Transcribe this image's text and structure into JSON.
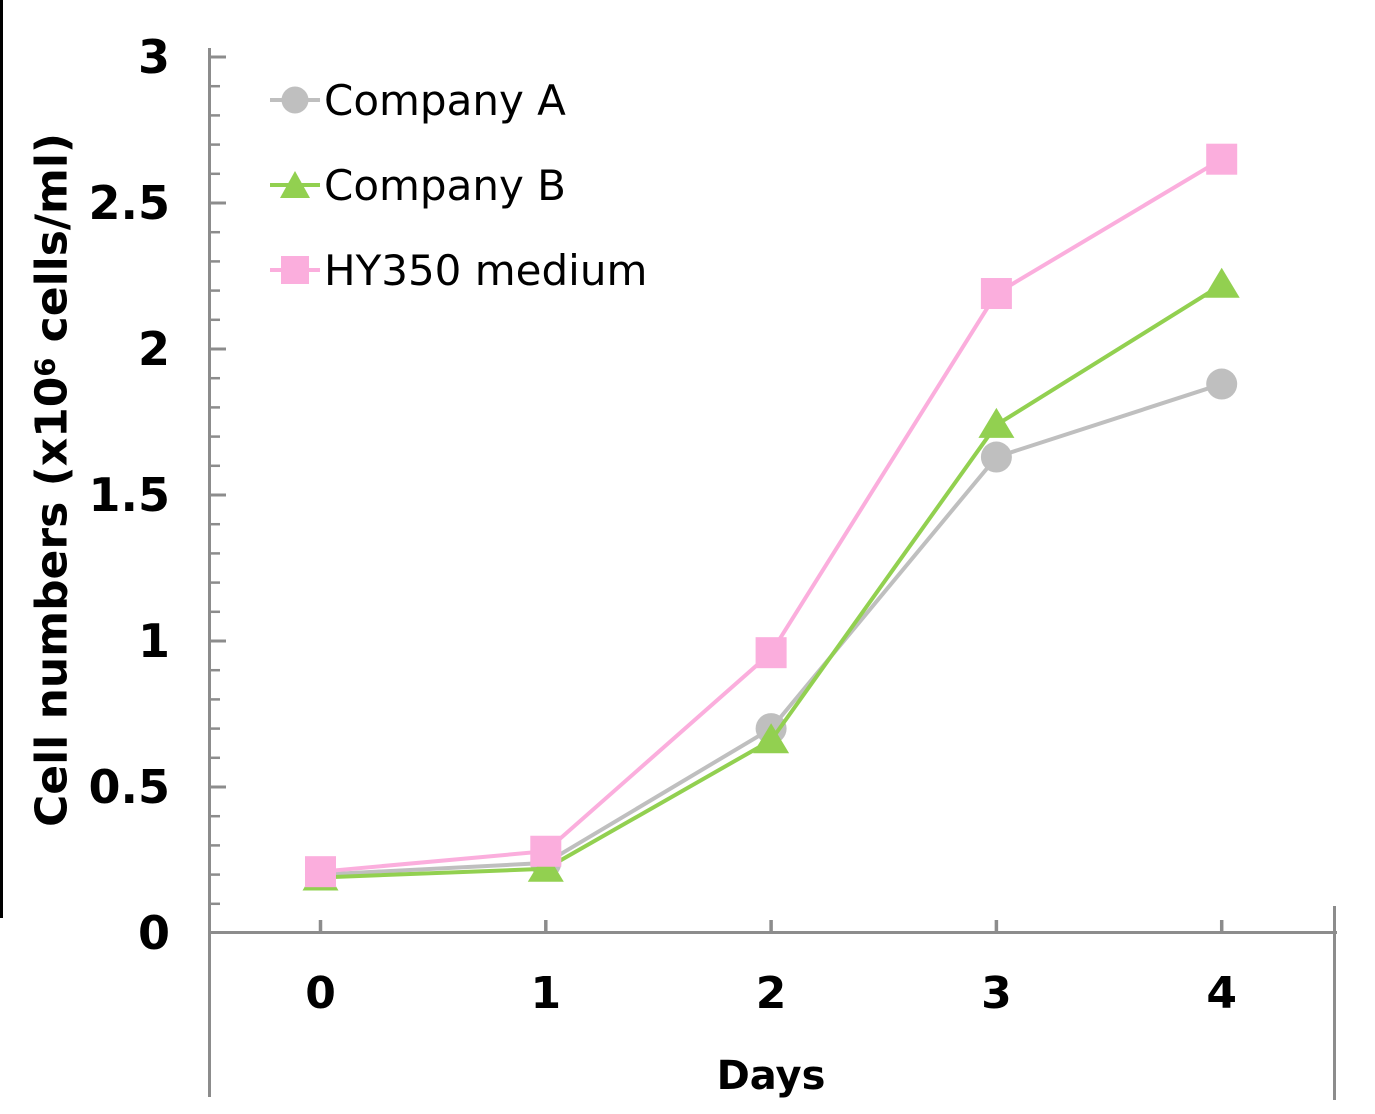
{
  "page": {
    "background": "#ffffff",
    "left_border_color": "#000000"
  },
  "chart_data": {
    "type": "line",
    "title": "",
    "xlabel": "Days",
    "ylabel": "Cell numbers (x10⁶ cells/ml)",
    "ylabel_parts": {
      "pre": "Cell numbers (x10",
      "sup": "6",
      "post": " cells/ml)"
    },
    "x": [
      0,
      1,
      2,
      3,
      4
    ],
    "x_tick_labels": [
      "0",
      "1",
      "2",
      "3",
      "4"
    ],
    "y_tick_labels": [
      "0",
      "0.5",
      "1",
      "1.5",
      "2",
      "2.5",
      "3"
    ],
    "ylim": [
      0,
      3
    ],
    "y_major_step": 0.5,
    "y_minor_step": 0.1,
    "grid": false,
    "legend_position": "inside-top-left",
    "axis_color": "#8c8c8c",
    "text_color": "#000000",
    "series": [
      {
        "name": "Company A",
        "marker": "circle",
        "color": "#bfbfbf",
        "values": [
          0.2,
          0.24,
          0.7,
          1.63,
          1.88
        ]
      },
      {
        "name": "Company B",
        "marker": "triangle",
        "color": "#92d050",
        "values": [
          0.19,
          0.22,
          0.66,
          1.74,
          2.22
        ]
      },
      {
        "name": "HY350 medium",
        "marker": "square",
        "color": "#fbaedd",
        "values": [
          0.21,
          0.28,
          0.96,
          2.19,
          2.65
        ]
      }
    ]
  }
}
